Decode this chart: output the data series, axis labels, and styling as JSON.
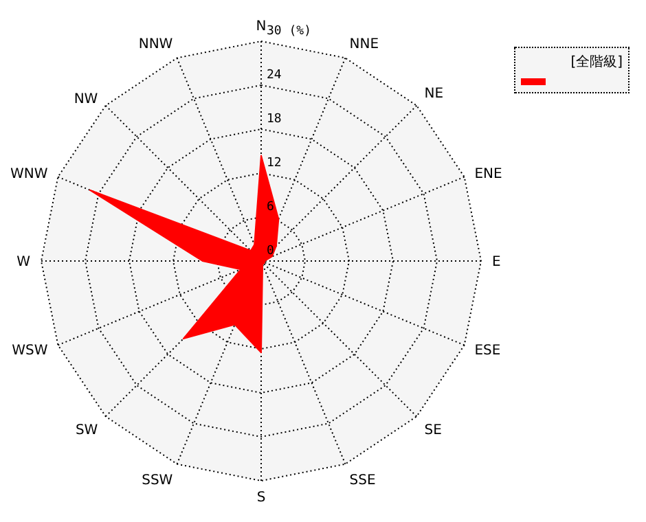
{
  "chart_data": {
    "type": "radar",
    "legend_title": "[全階級]",
    "grid": true,
    "categories": [
      "N",
      "NNE",
      "NE",
      "ENE",
      "E",
      "ESE",
      "SE",
      "SSE",
      "S",
      "SSW",
      "SW",
      "WSW",
      "W",
      "WNW",
      "NW",
      "NNW"
    ],
    "ylim": [
      0,
      30
    ],
    "yticks": [
      0,
      6,
      12,
      18,
      24,
      {
        "value": 30,
        "label": "30 (%)"
      }
    ],
    "series": [
      {
        "color": "#ff0000",
        "values": [
          14.4,
          6.2,
          2.9,
          1.6,
          0.5,
          0.5,
          0.5,
          0.5,
          12.5,
          9.4,
          15.0,
          3.0,
          8.0,
          25.3,
          2.0,
          2.4
        ]
      }
    ]
  }
}
